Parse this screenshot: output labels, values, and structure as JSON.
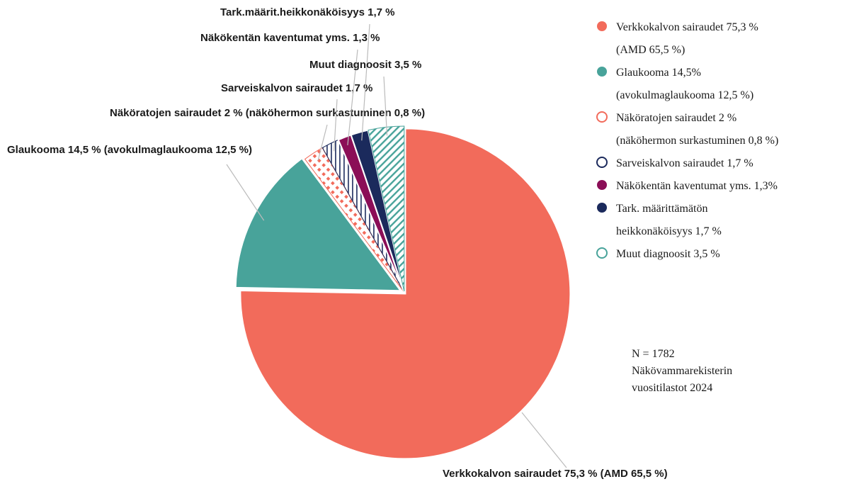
{
  "chart_data": {
    "type": "pie",
    "categories": [
      [
        "Verkkokalvon sairaudet 75,3 %",
        "(AMD 65,5 %)"
      ],
      [
        "Glaukooma 14,5%",
        "(avokulmaglaukooma 12,5 %)"
      ],
      [
        "Näköratojen sairaudet 2 %",
        "(näköhermon surkastuminen 0,8 %)"
      ],
      [
        "Sarveiskalvon sairaudet 1,7 %"
      ],
      [
        "Näkökentän kaventumat yms. 1,3%"
      ],
      [
        "Tark. määrittämätön",
        "heikkonäköisyys 1,7 %"
      ],
      [
        "Muut diagnoosit 3,5 %"
      ]
    ],
    "values": [
      75.3,
      14.5,
      2,
      1.7,
      1.3,
      1.7,
      3.5
    ],
    "value_labels": [
      "Verkkokalvon sairaudet 75,3 % (AMD 65,5 %)",
      "Glaukooma 14,5 % (avokulmaglaukooma 12,5 %)",
      "Näköratojen sairaudet 2 % (näköhermon surkastuminen 0,8 %)",
      "Sarveiskalvon sairaudet 1,7 %",
      "Näkökentän kaventumat yms. 1,3 %",
      "Tark.määrit.heikkonäköisyys 1,7 %",
      "Muut diagnoosit 3,5 %"
    ],
    "colors": [
      "#f26b5b",
      "#48a39a",
      "#f26b5b",
      "#1b2a5c",
      "#8b0e57",
      "#1b2a5c",
      "#48a39a"
    ],
    "styles": [
      "solid",
      "solid",
      "dots",
      "vlines",
      "solid",
      "solid",
      "diagonal"
    ],
    "notes": [
      "N = 1782",
      "Näkövammarekisterin",
      "vuositilastot 2024"
    ]
  }
}
